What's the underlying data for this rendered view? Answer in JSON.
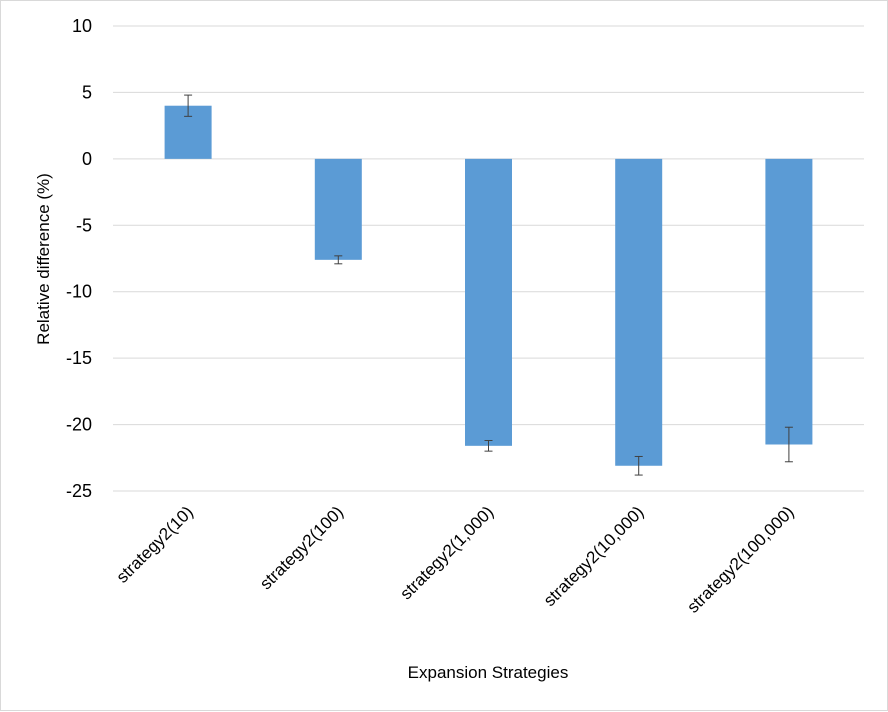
{
  "chart_data": {
    "type": "bar",
    "title": "",
    "xlabel": "Expansion Strategies",
    "ylabel": "Relative difference (%)",
    "ylim": [
      -25,
      10
    ],
    "yticks": [
      10,
      5,
      0,
      -5,
      -10,
      -15,
      -20,
      -25
    ],
    "grid": true,
    "categories": [
      "strategy2(10)",
      "strategy2(100)",
      "strategy2(1,000)",
      "strategy2(10,000)",
      "strategy2(100,000)"
    ],
    "values": [
      4.0,
      -7.6,
      -21.6,
      -23.1,
      -21.5
    ],
    "error_bars": [
      0.8,
      0.3,
      0.4,
      0.7,
      1.3
    ],
    "colors": {
      "bar": "#5B9BD5",
      "grid": "#d9d9d9",
      "error": "#404040"
    }
  }
}
